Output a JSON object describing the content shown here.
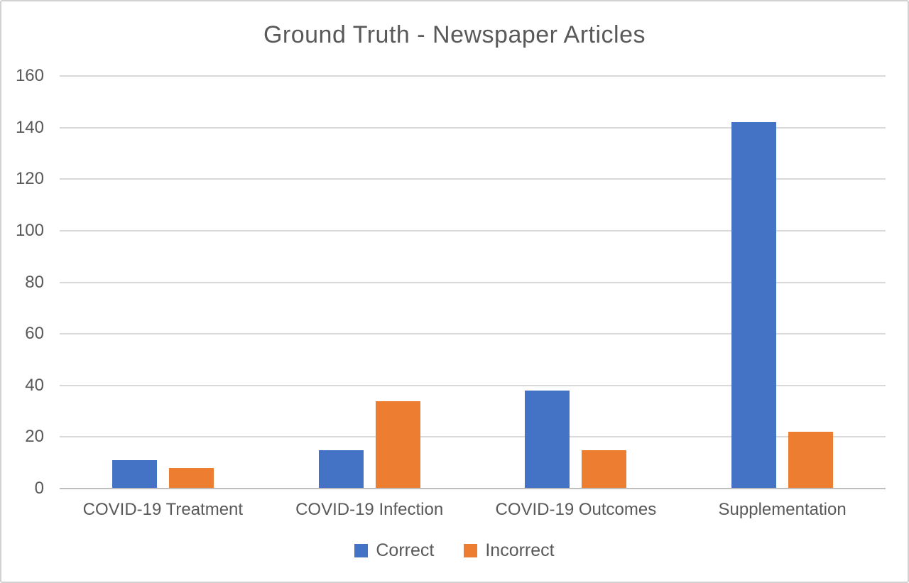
{
  "chart_data": {
    "type": "bar",
    "title": "Ground Truth - Newspaper Articles",
    "categories": [
      "COVID-19 Treatment",
      "COVID-19 Infection",
      "COVID-19 Outcomes",
      "Supplementation"
    ],
    "series": [
      {
        "name": "Correct",
        "color": "#4472C4",
        "values": [
          11,
          15,
          38,
          142
        ]
      },
      {
        "name": "Incorrect",
        "color": "#ED7D31",
        "values": [
          8,
          34,
          15,
          22
        ]
      }
    ],
    "xlabel": "",
    "ylabel": "",
    "ylim": [
      0,
      160
    ],
    "yticks": [
      0,
      20,
      40,
      60,
      80,
      100,
      120,
      140,
      160
    ],
    "grid": true,
    "legend_position": "bottom"
  },
  "colors": {
    "background": "#ffffff",
    "frame_border": "#d2d2d2",
    "title_text": "#595959",
    "axis_text": "#595959",
    "gridline": "#d9d9d9",
    "axis_line": "#bfbfbf",
    "series_correct": "#4472C4",
    "series_incorrect": "#ED7D31"
  }
}
